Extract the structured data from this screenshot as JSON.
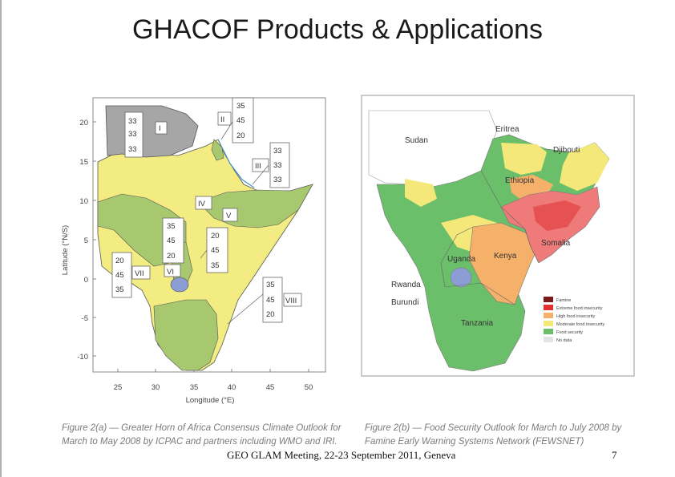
{
  "title": "GHACOF Products & Applications",
  "map1": {
    "xlabel": "Longitude (°E)",
    "ylabel": "Latitude (°N/S)",
    "xticks": [
      "25",
      "30",
      "35",
      "40",
      "45",
      "50"
    ],
    "yticks": [
      "20",
      "15",
      "10",
      "5",
      "0",
      "-5",
      "-10"
    ],
    "zones": [
      {
        "id": "I",
        "probs": [
          "33",
          "33",
          "33"
        ]
      },
      {
        "id": "II",
        "probs": [
          "35",
          "45",
          "20"
        ]
      },
      {
        "id": "III",
        "probs": [
          "33",
          "33",
          "33"
        ]
      },
      {
        "id": "IV",
        "probs": []
      },
      {
        "id": "V",
        "probs": []
      },
      {
        "id": "VI",
        "probs": [
          "35",
          "45",
          "20"
        ]
      },
      {
        "id": "VII",
        "probs": [
          "20",
          "45",
          "35"
        ]
      },
      {
        "id": "VIII",
        "probs": [
          "35",
          "45",
          "20"
        ]
      },
      {
        "id": "",
        "probs": [
          "20",
          "45",
          "35"
        ]
      }
    ],
    "colors": {
      "above": "#a8c870",
      "normal": "#f2ec82",
      "below": "#e6c85a",
      "climatology": "#a6a6a6",
      "lake": "#8c9cd4"
    }
  },
  "map2": {
    "country_labels": [
      "Sudan",
      "Eritrea",
      "Djibouti",
      "Ethiopia",
      "Somalia",
      "Kenya",
      "Uganda",
      "Rwanda",
      "Burundi",
      "Tanzania"
    ],
    "legend": [
      {
        "label": "Famine",
        "color": "#7a1a1a"
      },
      {
        "label": "Extreme food insecurity",
        "color": "#e03030"
      },
      {
        "label": "High food insecurity",
        "color": "#f5b06a"
      },
      {
        "label": "Moderate food insecurity",
        "color": "#f5e87a"
      },
      {
        "label": "Food security",
        "color": "#6cbf6a"
      },
      {
        "label": "No data",
        "color": "#e4e4e4"
      }
    ]
  },
  "captions": {
    "left": "Figure 2(a) — Greater Horn of Africa Consensus Climate Outlook for March to May 2008 by ICPAC and partners including WMO and IRI.",
    "right": "Figure 2(b) — Food Security Outlook for March to July 2008 by Famine Early Warning Systems Network (FEWSNET)"
  },
  "footer": "GEO GLAM Meeting, 22-23 September 2011, Geneva",
  "page_number": "7"
}
